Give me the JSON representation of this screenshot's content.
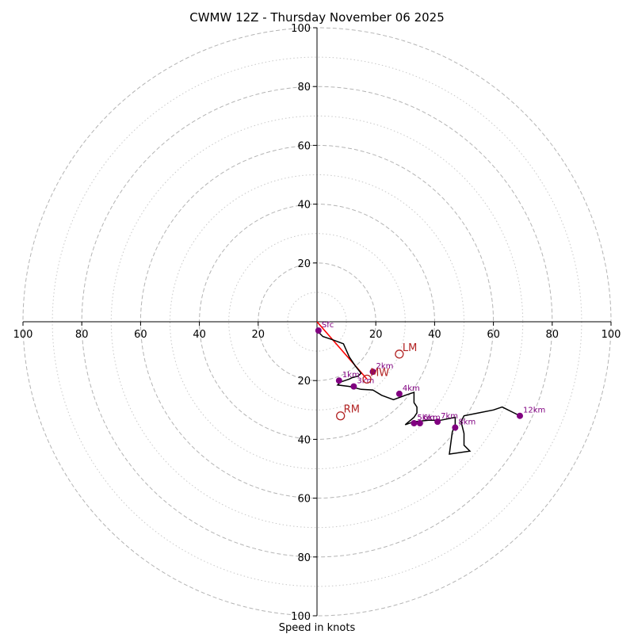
{
  "chart_data": {
    "type": "hodograph",
    "title": "CWMW 12Z - Thursday November 06 2025",
    "xlabel": "Speed in knots",
    "range": [
      0,
      100
    ],
    "major_rings": [
      20,
      40,
      60,
      80,
      100
    ],
    "minor_rings": [
      10,
      30,
      50,
      70,
      90
    ],
    "axis_ticks": {
      "top": [
        "100",
        "80",
        "60",
        "40",
        "20"
      ],
      "bottom": [
        "20",
        "40",
        "60",
        "80",
        "100"
      ],
      "left": [
        "100",
        "80",
        "60",
        "40",
        "20"
      ],
      "right": [
        "20",
        "40",
        "60",
        "80",
        "100"
      ]
    },
    "tick_values": [
      100,
      80,
      60,
      40,
      20
    ],
    "wind_profile": {
      "color": "#000000",
      "points": [
        [
          0,
          -3
        ],
        [
          2,
          -5
        ],
        [
          5,
          -6
        ],
        [
          9,
          -7.5
        ],
        [
          11,
          -12
        ],
        [
          13,
          -15
        ],
        [
          15,
          -17.5
        ],
        [
          14,
          -18.5
        ],
        [
          12,
          -19
        ],
        [
          11,
          -19.5
        ],
        [
          8,
          -20.5
        ],
        [
          7,
          -21.5
        ],
        [
          11,
          -22
        ],
        [
          15,
          -23
        ],
        [
          19,
          -23.2
        ],
        [
          22,
          -25
        ],
        [
          26,
          -26.5
        ],
        [
          30,
          -25
        ],
        [
          33,
          -24
        ],
        [
          33,
          -27.5
        ],
        [
          34,
          -29
        ],
        [
          34,
          -31
        ],
        [
          33,
          -32.5
        ],
        [
          30,
          -35
        ],
        [
          33,
          -34
        ],
        [
          38,
          -33.5
        ],
        [
          42,
          -33.5
        ],
        [
          47,
          -32.5
        ],
        [
          47,
          -35
        ],
        [
          46,
          -37.5
        ],
        [
          45,
          -45
        ],
        [
          52,
          -44
        ],
        [
          50,
          -42
        ],
        [
          50,
          -38
        ],
        [
          49,
          -34
        ],
        [
          50,
          -32
        ],
        [
          55,
          -31
        ],
        [
          60,
          -30
        ],
        [
          63,
          -29
        ],
        [
          67,
          -31
        ],
        [
          69,
          -32
        ]
      ]
    },
    "height_markers": {
      "color": "#800080",
      "points": [
        {
          "label": "Sfc",
          "u": 0.5,
          "v": -3
        },
        {
          "label": "1km",
          "u": 7.5,
          "v": -20
        },
        {
          "label": "2km",
          "u": 19,
          "v": -17
        },
        {
          "label": "3km",
          "u": 12.5,
          "v": -22
        },
        {
          "label": "4km",
          "u": 28,
          "v": -24.5
        },
        {
          "label": "5km",
          "u": 33,
          "v": -34.5
        },
        {
          "label": "6km",
          "u": 35,
          "v": -34.5
        },
        {
          "label": "7km",
          "u": 41,
          "v": -34
        },
        {
          "label": "8km",
          "u": 47,
          "v": -36
        },
        {
          "label": "12km",
          "u": 69,
          "v": -32
        }
      ]
    },
    "motion_markers": {
      "color": "#b22222",
      "points": [
        {
          "label": "LM",
          "u": 28,
          "v": -11
        },
        {
          "label": "MW",
          "u": 17,
          "v": -19.5
        },
        {
          "label": "RM",
          "u": 8,
          "v": -32
        }
      ]
    },
    "shear_vector": {
      "color": "#ff0000",
      "from": [
        0,
        0
      ],
      "to": [
        17,
        -19.5
      ]
    }
  }
}
